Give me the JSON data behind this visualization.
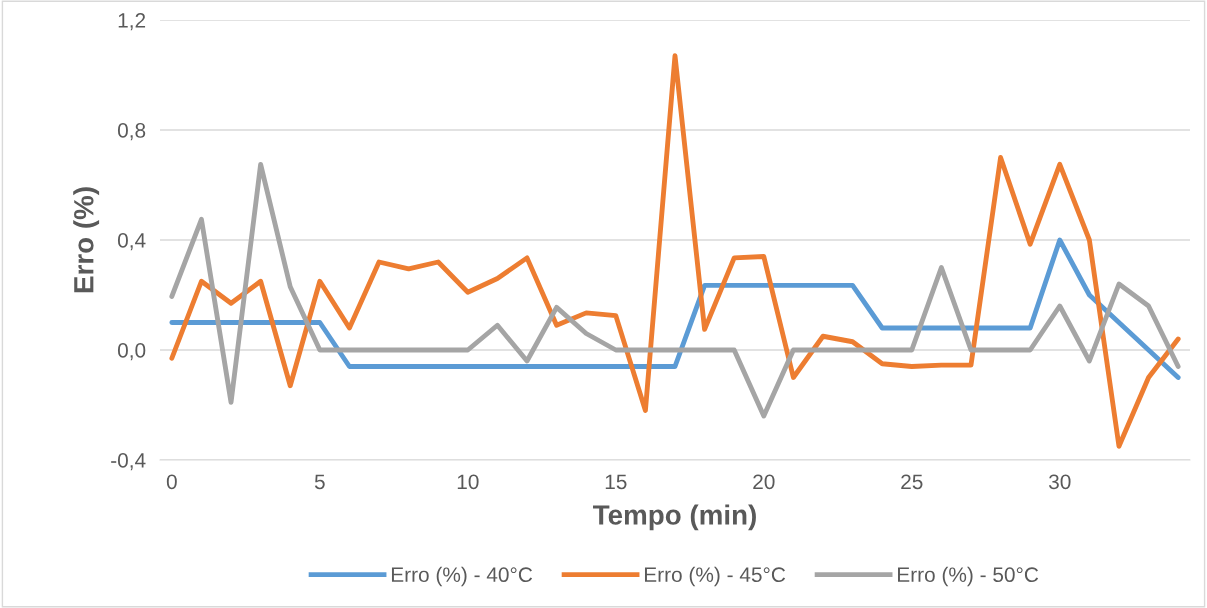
{
  "chart_data": {
    "type": "line",
    "xlabel": "Tempo (min)",
    "ylabel": "Erro (%)",
    "x": [
      0,
      1,
      2,
      3,
      4,
      5,
      6,
      7,
      8,
      9,
      10,
      11,
      12,
      13,
      14,
      15,
      16,
      17,
      18,
      19,
      20,
      21,
      22,
      23,
      24,
      25,
      26,
      27,
      28,
      29,
      30,
      31,
      32,
      33,
      34
    ],
    "series": [
      {
        "name": "Erro (%) - 40°C",
        "color": "#5b9bd5",
        "values": [
          0.1,
          0.1,
          0.1,
          0.1,
          0.1,
          0.1,
          -0.06,
          -0.06,
          -0.06,
          -0.06,
          -0.06,
          -0.06,
          -0.06,
          -0.06,
          -0.06,
          -0.06,
          -0.06,
          -0.06,
          0.235,
          0.235,
          0.235,
          0.235,
          0.235,
          0.235,
          0.08,
          0.08,
          0.08,
          0.08,
          0.08,
          0.08,
          0.4,
          0.2,
          0.1,
          0.0,
          -0.1
        ]
      },
      {
        "name": "Erro (%) - 45°C",
        "color": "#ed7d31",
        "values": [
          -0.03,
          0.25,
          0.17,
          0.25,
          -0.13,
          0.25,
          0.08,
          0.32,
          0.295,
          0.32,
          0.21,
          0.26,
          0.335,
          0.09,
          0.135,
          0.125,
          -0.22,
          1.07,
          0.075,
          0.335,
          0.34,
          -0.1,
          0.05,
          0.03,
          -0.05,
          -0.06,
          -0.055,
          -0.055,
          0.7,
          0.385,
          0.675,
          0.4,
          -0.35,
          -0.1,
          0.04
        ]
      },
      {
        "name": "Erro (%) - 50°C",
        "color": "#a5a5a5",
        "values": [
          0.195,
          0.475,
          -0.19,
          0.675,
          0.23,
          0,
          0,
          0,
          0,
          0,
          0,
          0.09,
          -0.04,
          0.155,
          0.06,
          0,
          0,
          0,
          0,
          0,
          -0.24,
          0,
          0,
          0,
          0,
          0,
          0.3,
          0,
          0,
          0,
          0.16,
          -0.04,
          0.24,
          0.16,
          -0.06
        ]
      }
    ],
    "xlim": [
      -0.4,
      34.4
    ],
    "xticks": [
      0,
      5,
      10,
      15,
      20,
      25,
      30
    ],
    "ylim": [
      -0.4,
      1.2
    ],
    "yticks": [
      {
        "value": -0.4,
        "label": "-0,4"
      },
      {
        "value": 0,
        "label": "0,0"
      },
      {
        "value": 0.4,
        "label": "0,4"
      },
      {
        "value": 0.8,
        "label": "0,8"
      },
      {
        "value": 1.2,
        "label": "1,2"
      }
    ],
    "grid": "y",
    "legend": "bottom",
    "marker": "none",
    "line_style": "solid"
  }
}
